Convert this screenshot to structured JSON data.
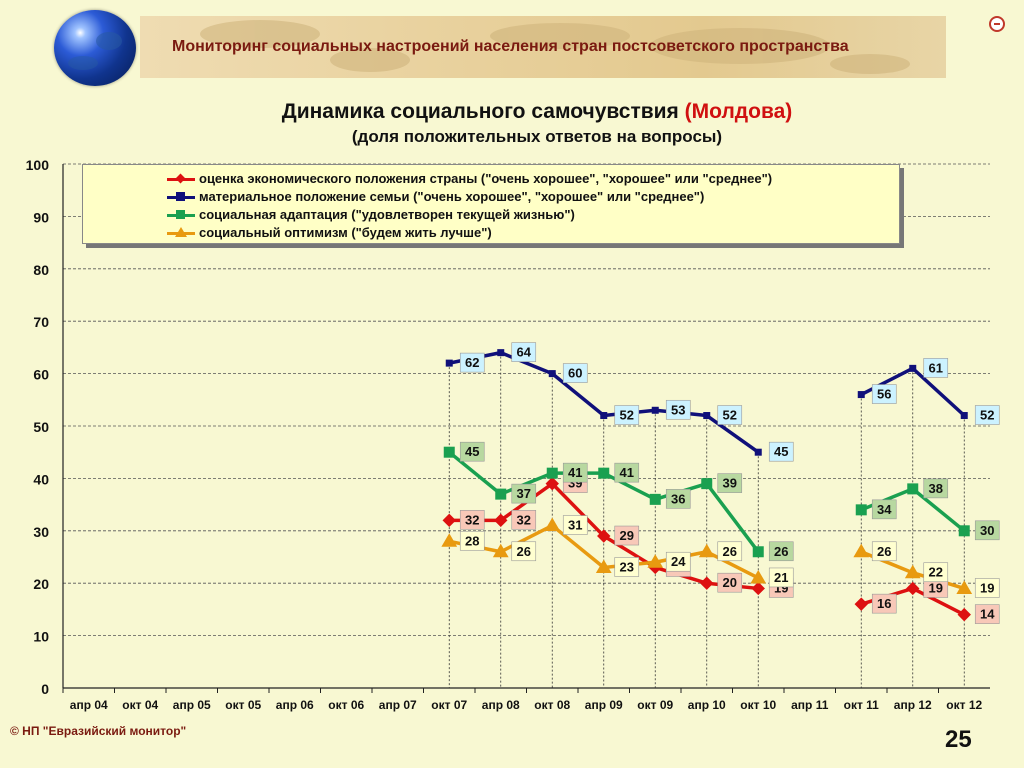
{
  "header": {
    "title": "Мониторинг социальных настроений населения стран постсоветского пространства"
  },
  "footer": {
    "copyright": "© НП \"Евразийский монитор\"",
    "page_number": "25"
  },
  "chart_data": {
    "type": "line",
    "title": "Динамика социального самочувствия",
    "title_highlight": "(Молдова)",
    "subtitle": "(доля положительных ответов на вопросы)",
    "xlabel": "",
    "ylabel": "",
    "ylim": [
      0,
      100
    ],
    "yticks": [
      0,
      10,
      20,
      30,
      40,
      50,
      60,
      70,
      80,
      90,
      100
    ],
    "grid": true,
    "legend_position": "top",
    "categories": [
      "апр 04",
      "окт 04",
      "апр 05",
      "окт 05",
      "апр 06",
      "окт 06",
      "апр 07",
      "окт 07",
      "апр 08",
      "окт 08",
      "апр 09",
      "окт 09",
      "апр 10",
      "окт 10",
      "апр 11",
      "окт 11",
      "апр 12",
      "окт 12"
    ],
    "series": [
      {
        "name": "оценка экономического положения страны (\"очень хорошее\", \"хорошее\" или \"среднее\")",
        "color": "#dd1111",
        "marker": "diamond",
        "label_bg": "#f8c8b8",
        "values": [
          null,
          null,
          null,
          null,
          null,
          null,
          null,
          32,
          32,
          39,
          29,
          23,
          20,
          19,
          null,
          16,
          19,
          14
        ]
      },
      {
        "name": "материальное положение семьи (\"очень хорошее\", \"хорошее\" или \"среднее\")",
        "color": "#10107a",
        "marker": "square",
        "label_bg": "#ccf2ff",
        "values": [
          null,
          null,
          null,
          null,
          null,
          null,
          null,
          62,
          64,
          60,
          52,
          53,
          52,
          45,
          null,
          56,
          61,
          52
        ]
      },
      {
        "name": "социальная адаптация (\"удовлетворен текущей жизнью\")",
        "color": "#1aa050",
        "marker": "square",
        "label_bg": "#b8d8a0",
        "values": [
          null,
          null,
          null,
          null,
          null,
          null,
          null,
          45,
          37,
          41,
          41,
          36,
          39,
          26,
          null,
          34,
          38,
          30
        ]
      },
      {
        "name": "социальный оптимизм (\"будем жить лучше\")",
        "color": "#e89a10",
        "marker": "triangle",
        "label_bg": "#ffffd0",
        "values": [
          null,
          null,
          null,
          null,
          null,
          null,
          null,
          28,
          26,
          31,
          23,
          24,
          26,
          21,
          null,
          26,
          22,
          19
        ]
      }
    ]
  }
}
